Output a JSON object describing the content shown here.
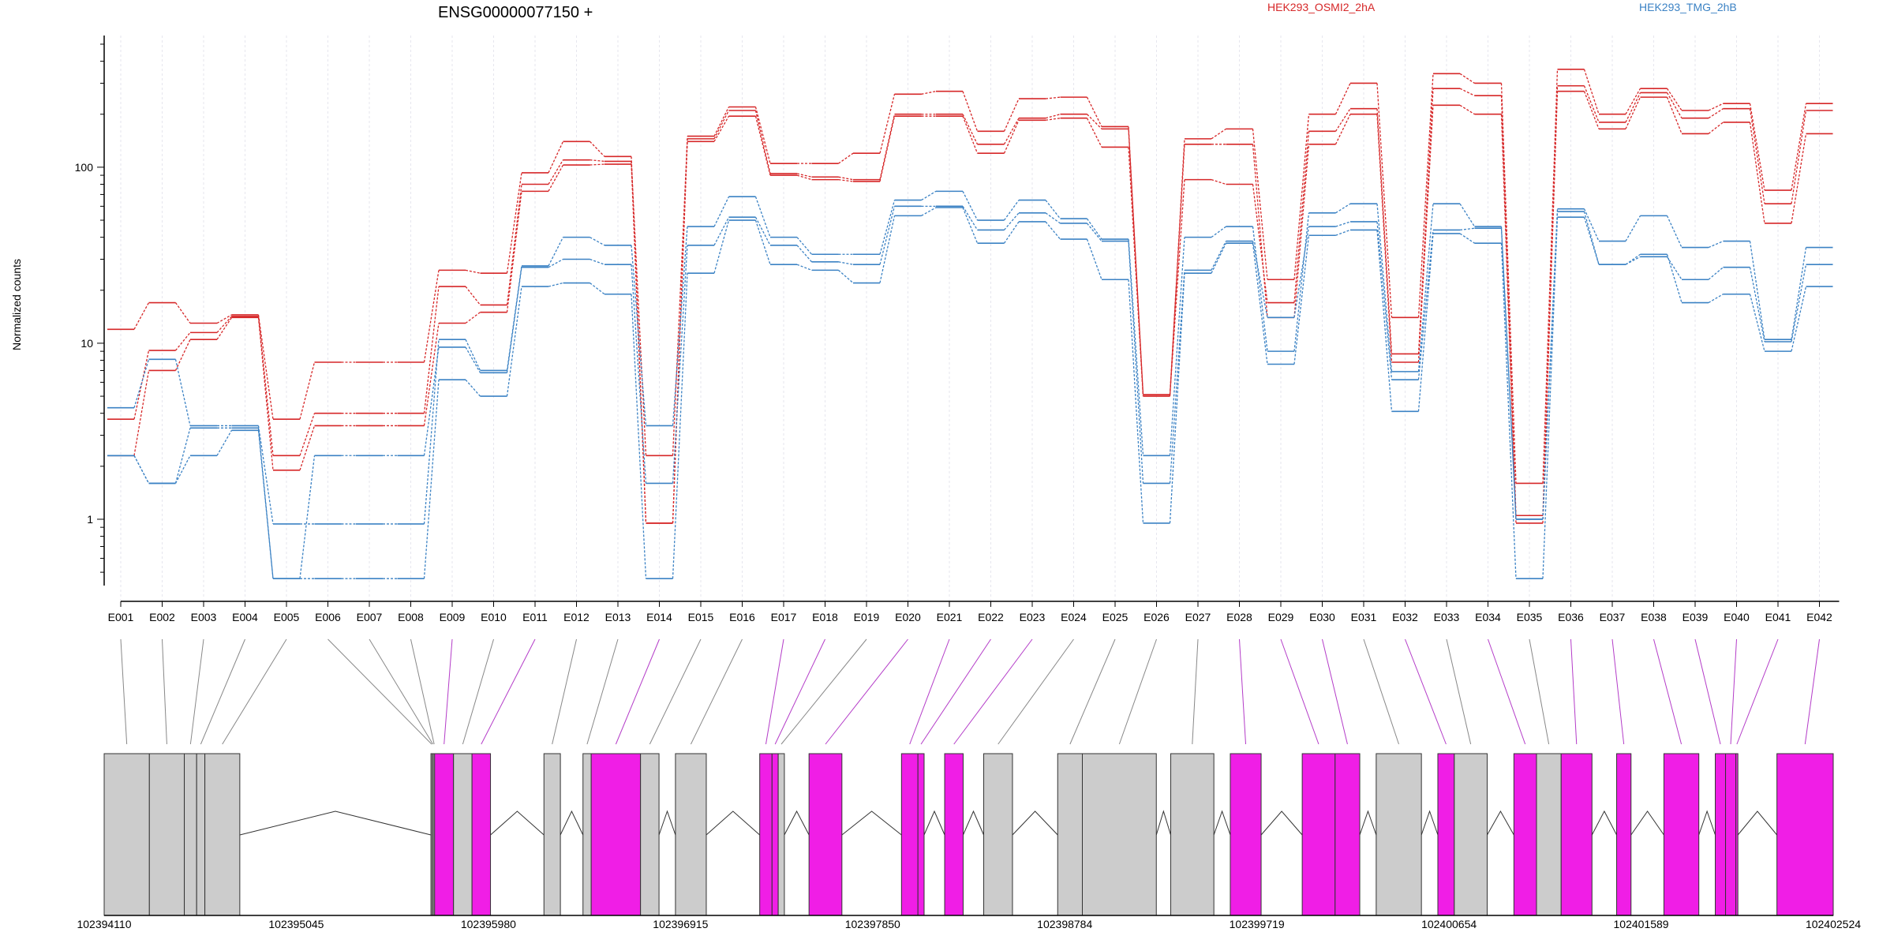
{
  "chart_data": {
    "type": "line",
    "title": "ENSG00000077150 +",
    "ylabel": "Normalized counts",
    "xlabel": "",
    "y_scale": "log",
    "ylim": [
      0.42,
      560
    ],
    "y_ticks": [
      {
        "value": 1,
        "label": "1"
      },
      {
        "value": 10,
        "label": "10"
      },
      {
        "value": 100,
        "label": "100"
      }
    ],
    "grid": "vertical-dashed",
    "legend_placement": "top-right",
    "categories": [
      "E001",
      "E002",
      "E003",
      "E004",
      "E005",
      "E006",
      "E007",
      "E008",
      "E009",
      "E010",
      "E011",
      "E012",
      "E013",
      "E014",
      "E015",
      "E016",
      "E017",
      "E018",
      "E019",
      "E020",
      "E021",
      "E022",
      "E023",
      "E024",
      "E025",
      "E026",
      "E027",
      "E028",
      "E029",
      "E030",
      "E031",
      "E032",
      "E033",
      "E034",
      "E035",
      "E036",
      "E037",
      "E038",
      "E039",
      "E040",
      "E041",
      "E042"
    ],
    "groups": [
      {
        "name": "HEK293_OSMI2_2hA",
        "color": "#d62728"
      },
      {
        "name": "HEK293_TMG_2hB",
        "color": "#3b82c4"
      }
    ],
    "series": [
      {
        "group": 0,
        "values": [
          12,
          17,
          13,
          14.5,
          3.7,
          7.8,
          7.8,
          7.8,
          26,
          25,
          93,
          140,
          115,
          0.95,
          150,
          220,
          105,
          105,
          120,
          260,
          270,
          160,
          245,
          250,
          170,
          5.1,
          145,
          165,
          23,
          200,
          300,
          14,
          340,
          300,
          1.6,
          360,
          200,
          280,
          210,
          230,
          74,
          230
        ]
      },
      {
        "group": 0,
        "values": [
          3.7,
          9.1,
          11.5,
          14.2,
          2.3,
          4.0,
          4.0,
          4.0,
          21,
          16.5,
          80,
          110,
          108,
          2.3,
          145,
          210,
          92,
          88,
          85,
          200,
          200,
          135,
          190,
          200,
          165,
          5.1,
          85,
          80,
          17,
          160,
          215,
          8.7,
          280,
          255,
          1.05,
          290,
          180,
          265,
          190,
          215,
          62,
          210
        ]
      },
      {
        "group": 0,
        "values": [
          2.3,
          7.0,
          10.5,
          14.0,
          1.9,
          3.4,
          3.4,
          3.4,
          13,
          15,
          73,
          103,
          104,
          0.95,
          140,
          195,
          90,
          85,
          83,
          195,
          195,
          120,
          185,
          190,
          130,
          5.0,
          135,
          135,
          14,
          135,
          200,
          7.8,
          225,
          200,
          0.95,
          270,
          165,
          250,
          155,
          180,
          48,
          155
        ]
      },
      {
        "group": 1,
        "values": [
          4.3,
          8.1,
          3.4,
          3.4,
          0.94,
          0.94,
          0.94,
          0.94,
          10.5,
          7.0,
          27.5,
          40,
          36,
          3.4,
          46,
          68,
          40,
          32,
          32,
          65,
          73,
          50,
          65,
          51,
          39,
          2.3,
          40,
          46,
          9.0,
          55,
          62,
          6.9,
          62,
          46,
          1.0,
          58,
          38,
          53,
          35,
          38,
          10.5,
          35
        ]
      },
      {
        "group": 1,
        "values": [
          2.3,
          1.6,
          3.3,
          3.3,
          0.46,
          2.3,
          2.3,
          2.3,
          9.5,
          6.8,
          27,
          30,
          28,
          1.6,
          36,
          52,
          36,
          29,
          28,
          60,
          60,
          44,
          55,
          48,
          38,
          1.6,
          26,
          38,
          14,
          46,
          49,
          6.2,
          44,
          45,
          1.0,
          56,
          28,
          31,
          23,
          27,
          10.2,
          28
        ]
      },
      {
        "group": 1,
        "values": [
          2.3,
          1.6,
          2.3,
          3.2,
          0.46,
          0.46,
          0.46,
          0.46,
          6.2,
          5.0,
          21,
          22,
          19,
          0.46,
          25,
          50,
          28,
          26,
          22,
          53,
          59,
          37,
          49,
          39,
          23,
          0.95,
          25,
          37,
          7.6,
          41,
          44,
          4.1,
          42,
          37,
          0.46,
          52,
          28,
          32,
          17,
          19,
          9.0,
          21
        ]
      }
    ],
    "genomic_axis": {
      "ticks": [
        "102394110",
        "102395045",
        "102395980",
        "102396915",
        "102397850",
        "102398784",
        "102399719",
        "102400654",
        "102401589",
        "102402524"
      ],
      "start": 102394110,
      "end": 102402524
    },
    "exons": [
      {
        "id": "E001",
        "start": 102394110,
        "end": 102394330,
        "highlight": false
      },
      {
        "id": "E002",
        "start": 102394330,
        "end": 102394500,
        "highlight": false
      },
      {
        "id": "E003",
        "start": 102394500,
        "end": 102394560,
        "highlight": false
      },
      {
        "id": "E004",
        "start": 102394560,
        "end": 102394600,
        "highlight": false
      },
      {
        "id": "E005",
        "start": 102394600,
        "end": 102394770,
        "highlight": false
      },
      {
        "id": "E006",
        "start": 102395700,
        "end": 102395706,
        "highlight": false
      },
      {
        "id": "E007",
        "start": 102395706,
        "end": 102395712,
        "highlight": false
      },
      {
        "id": "E008",
        "start": 102395712,
        "end": 102395718,
        "highlight": false
      },
      {
        "id": "E009",
        "start": 102395718,
        "end": 102395810,
        "highlight": true
      },
      {
        "id": "E010",
        "start": 102395810,
        "end": 102395900,
        "highlight": false
      },
      {
        "id": "E011",
        "start": 102395900,
        "end": 102395990,
        "highlight": true
      },
      {
        "id": "E012",
        "start": 102396250,
        "end": 102396330,
        "highlight": false
      },
      {
        "id": "E013",
        "start": 102396440,
        "end": 102396480,
        "highlight": false
      },
      {
        "id": "E014",
        "start": 102396480,
        "end": 102396720,
        "highlight": true
      },
      {
        "id": "E015",
        "start": 102396720,
        "end": 102396810,
        "highlight": false
      },
      {
        "id": "E016",
        "start": 102396890,
        "end": 102397040,
        "highlight": false
      },
      {
        "id": "E017",
        "start": 102397300,
        "end": 102397360,
        "highlight": true
      },
      {
        "id": "E018",
        "start": 102397360,
        "end": 102397390,
        "highlight": true
      },
      {
        "id": "E019",
        "start": 102397390,
        "end": 102397420,
        "highlight": false
      },
      {
        "id": "E020",
        "start": 102397540,
        "end": 102397700,
        "highlight": true
      },
      {
        "id": "E021",
        "start": 102397990,
        "end": 102398070,
        "highlight": true
      },
      {
        "id": "E022",
        "start": 102398070,
        "end": 102398100,
        "highlight": true
      },
      {
        "id": "E023",
        "start": 102398200,
        "end": 102398290,
        "highlight": true
      },
      {
        "id": "E024",
        "start": 102398390,
        "end": 102398530,
        "highlight": false
      },
      {
        "id": "E025",
        "start": 102398750,
        "end": 102398870,
        "highlight": false
      },
      {
        "id": "E026",
        "start": 102398870,
        "end": 102399230,
        "highlight": false
      },
      {
        "id": "E027",
        "start": 102399300,
        "end": 102399510,
        "highlight": false
      },
      {
        "id": "E028",
        "start": 102399590,
        "end": 102399740,
        "highlight": true
      },
      {
        "id": "E029",
        "start": 102399940,
        "end": 102400100,
        "highlight": true
      },
      {
        "id": "E030",
        "start": 102400100,
        "end": 102400220,
        "highlight": true
      },
      {
        "id": "E031",
        "start": 102400300,
        "end": 102400520,
        "highlight": false
      },
      {
        "id": "E032",
        "start": 102400600,
        "end": 102400680,
        "highlight": true
      },
      {
        "id": "E033",
        "start": 102400680,
        "end": 102400840,
        "highlight": false
      },
      {
        "id": "E034",
        "start": 102400970,
        "end": 102401080,
        "highlight": true
      },
      {
        "id": "E035",
        "start": 102401080,
        "end": 102401200,
        "highlight": false
      },
      {
        "id": "E036",
        "start": 102401200,
        "end": 102401350,
        "highlight": true
      },
      {
        "id": "E037",
        "start": 102401470,
        "end": 102401540,
        "highlight": true
      },
      {
        "id": "E038",
        "start": 102401700,
        "end": 102401870,
        "highlight": true
      },
      {
        "id": "E039",
        "start": 102401950,
        "end": 102402000,
        "highlight": true
      },
      {
        "id": "E040",
        "start": 102402000,
        "end": 102402050,
        "highlight": true
      },
      {
        "id": "E041",
        "start": 102402050,
        "end": 102402060,
        "highlight": true
      },
      {
        "id": "E042",
        "start": 102402250,
        "end": 102402524,
        "highlight": true
      }
    ],
    "colors": {
      "exon_normal": "#cccccc",
      "exon_highlight": "#f01ee6",
      "connector_normal": "#888888",
      "connector_highlight": "#b43cc8"
    }
  }
}
